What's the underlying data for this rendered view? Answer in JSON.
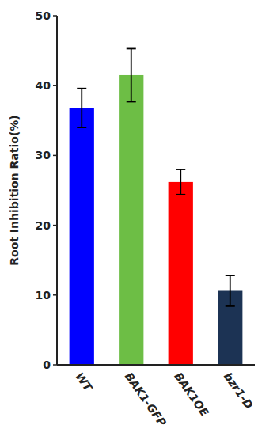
{
  "chart_data": {
    "type": "bar",
    "categories": [
      "WT",
      "BAK1-GFP",
      "BAK1OE",
      "bzr1-D"
    ],
    "values": [
      36.8,
      41.5,
      26.2,
      10.6
    ],
    "errors": [
      2.8,
      3.8,
      1.8,
      2.2
    ],
    "colors": [
      "#0000ff",
      "#6dbe45",
      "#ff0000",
      "#1c3354"
    ],
    "ylabel": "Root Inhibition Ratio(%)",
    "ylim": [
      0,
      50
    ],
    "yticks": [
      0,
      10,
      20,
      30,
      40,
      50
    ],
    "grid": false
  }
}
